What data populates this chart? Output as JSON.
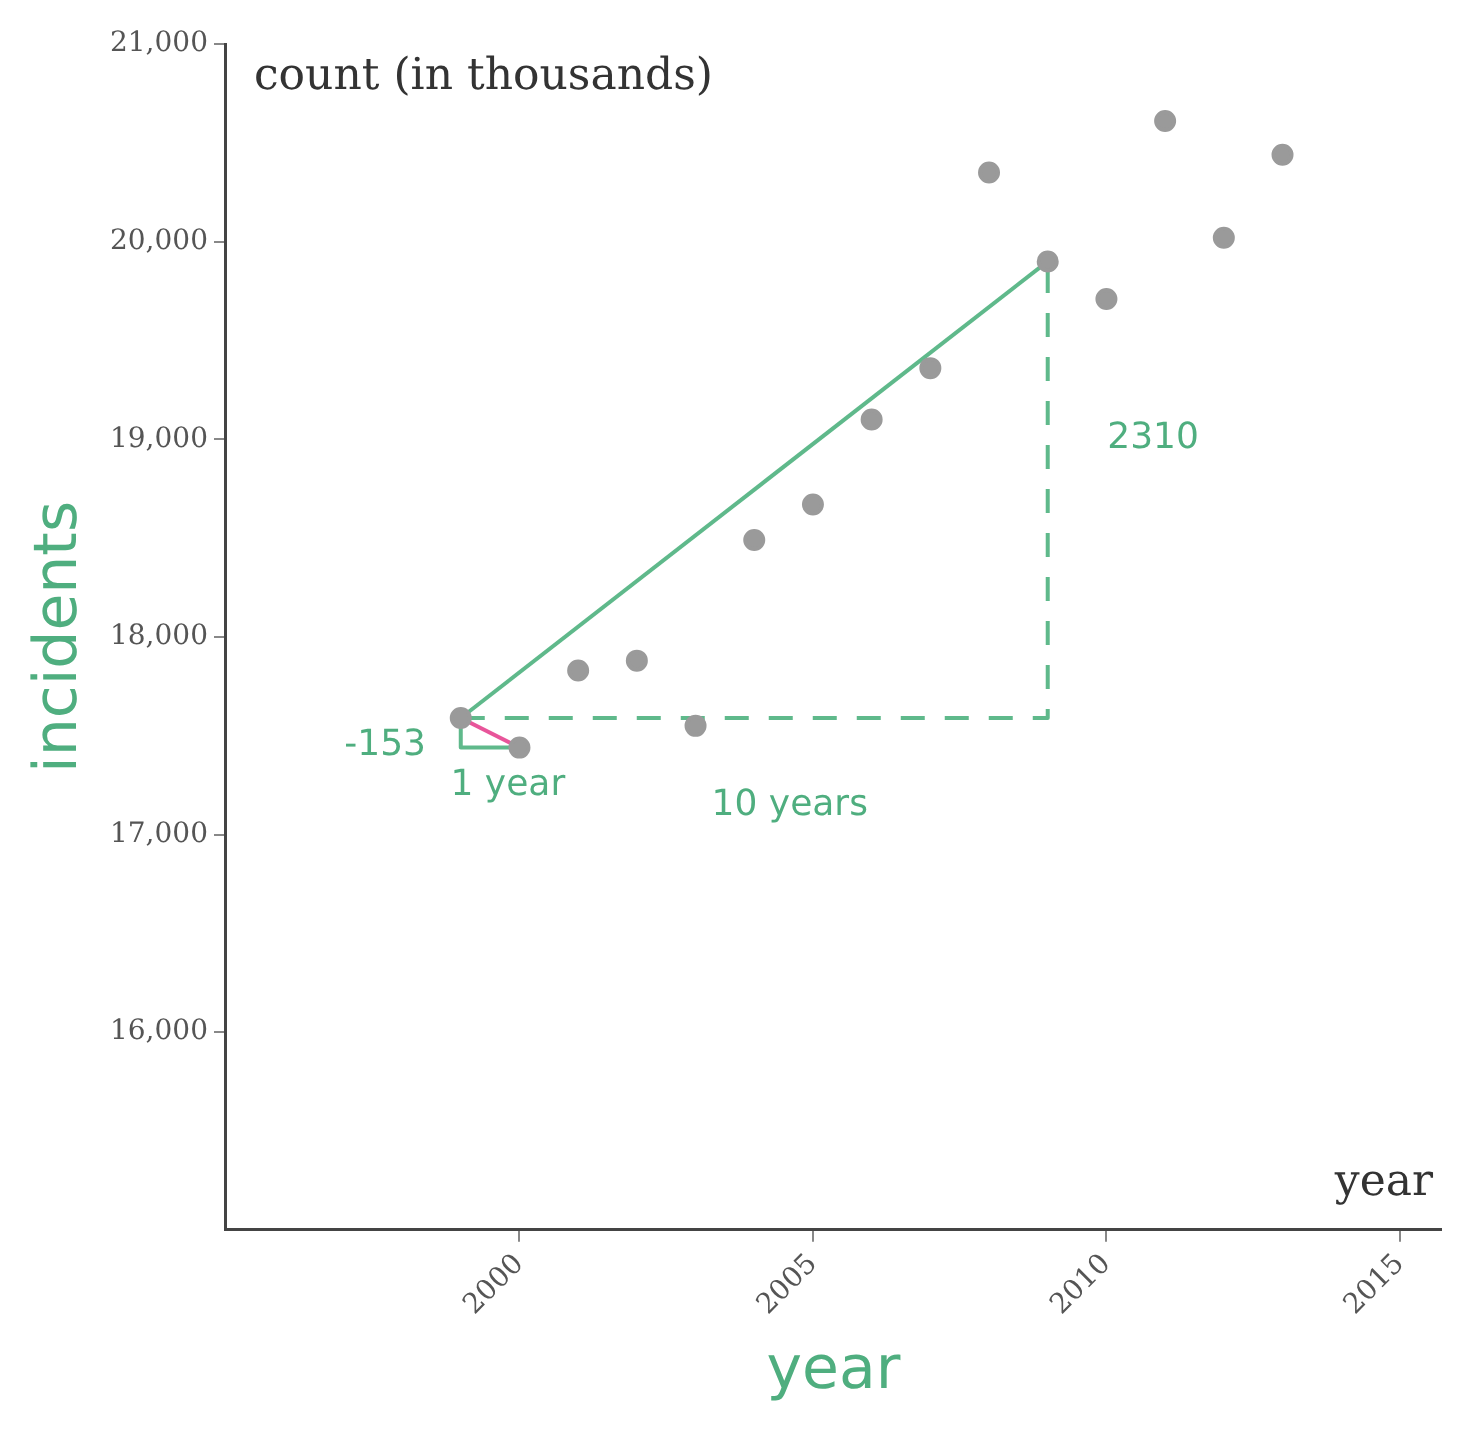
{
  "chart_data": {
    "type": "scatter",
    "xlabel": "year",
    "ylabel": "incidents",
    "xlim": [
      1995,
      2015.7
    ],
    "ylim": [
      15000,
      21000
    ],
    "xticks": [
      2000,
      2005,
      2010,
      2015
    ],
    "yticks": [
      {
        "value": 16000,
        "label": "16,000"
      },
      {
        "value": 17000,
        "label": "17,000"
      },
      {
        "value": 18000,
        "label": "18,000"
      },
      {
        "value": 19000,
        "label": "19,000"
      },
      {
        "value": 20000,
        "label": "20,000"
      },
      {
        "value": 21000,
        "label": "21,000"
      }
    ],
    "grid": false,
    "legend": false,
    "marker": "circle",
    "series": [
      {
        "type": "scatter",
        "color": "#9a9a9a",
        "x": [
          1999,
          2000,
          2001,
          2002,
          2003,
          2004,
          2005,
          2006,
          2007,
          2008,
          2009,
          2010,
          2011,
          2012,
          2013
        ],
        "values": [
          17590,
          17440,
          17830,
          17880,
          17550,
          18490,
          18670,
          19100,
          19360,
          20350,
          19900,
          19710,
          20610,
          20020,
          20440
        ]
      },
      {
        "type": "line",
        "color": "#5fb98b",
        "marker": "none",
        "x": [
          1999,
          2009
        ],
        "values": [
          17590,
          19900
        ]
      },
      {
        "type": "line",
        "color": "#5fb98b",
        "marker": "none",
        "line_style": "dashed",
        "x": [
          1999,
          2009,
          2009
        ],
        "values": [
          17590,
          17590,
          19900
        ]
      },
      {
        "type": "line",
        "color": "#5fb98b",
        "marker": "none",
        "x": [
          1999,
          1999,
          2000
        ],
        "values": [
          17590,
          17440,
          17440
        ]
      },
      {
        "type": "line",
        "color": "#e8559a",
        "marker": "none",
        "x": [
          1999,
          2000
        ],
        "values": [
          17590,
          17440
        ]
      }
    ],
    "annotations": [
      "count (in thousands)",
      "year",
      "2310",
      "-153",
      "1 year",
      "10 years"
    ]
  }
}
